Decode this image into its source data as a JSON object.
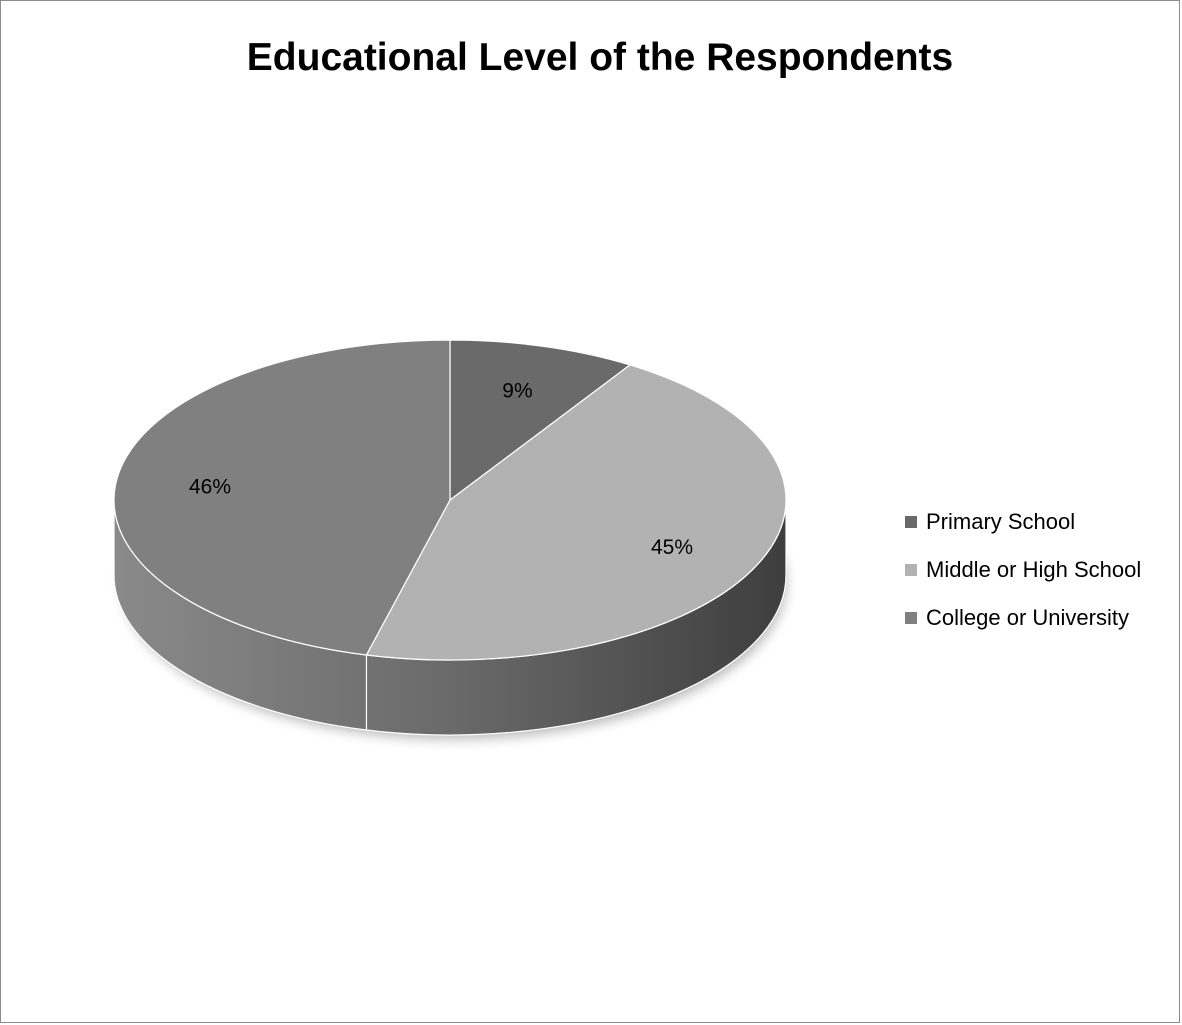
{
  "chart_data": {
    "type": "pie",
    "title": "Educational Level of the Respondents",
    "categories": [
      "Primary School",
      "Middle or High School",
      "College or University"
    ],
    "values": [
      9,
      45,
      46
    ],
    "value_labels": [
      "9%",
      "45%",
      "46%"
    ],
    "colors": [
      "#6a6a6a",
      "#b2b2b2",
      "#808080"
    ],
    "side_colors": [
      "#484848",
      "#5a5a5a",
      "#707070"
    ],
    "style": "3d",
    "legend_position": "right"
  }
}
